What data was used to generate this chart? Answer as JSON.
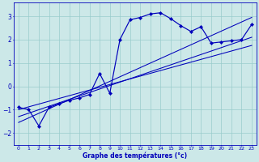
{
  "xlabel": "Graphe des températures (°c)",
  "background_color": "#cce8e8",
  "grid_color": "#99cccc",
  "line_color": "#0000bb",
  "xlim": [
    -0.5,
    23.5
  ],
  "ylim": [
    -2.5,
    3.6
  ],
  "yticks": [
    -2,
    -1,
    0,
    1,
    2,
    3
  ],
  "xticks": [
    0,
    1,
    2,
    3,
    4,
    5,
    6,
    7,
    8,
    9,
    10,
    11,
    12,
    13,
    14,
    15,
    16,
    17,
    18,
    19,
    20,
    21,
    22,
    23
  ],
  "curve_x": [
    0,
    1,
    2,
    3,
    4,
    5,
    6,
    7,
    8,
    9,
    10,
    11,
    12,
    13,
    14,
    15,
    16,
    17,
    18,
    19,
    20,
    21,
    22,
    23
  ],
  "curve_y": [
    -0.9,
    -1.0,
    -1.7,
    -0.9,
    -0.75,
    -0.6,
    -0.5,
    -0.35,
    0.55,
    -0.3,
    2.0,
    2.85,
    2.95,
    3.1,
    3.15,
    2.9,
    2.6,
    2.35,
    2.55,
    1.85,
    1.9,
    1.95,
    2.0,
    2.65
  ],
  "line1_x": [
    0,
    23
  ],
  "line1_y": [
    -1.55,
    2.95
  ],
  "line2_x": [
    0,
    23
  ],
  "line2_y": [
    -1.3,
    2.1
  ],
  "line3_x": [
    0,
    23
  ],
  "line3_y": [
    -1.0,
    1.75
  ]
}
